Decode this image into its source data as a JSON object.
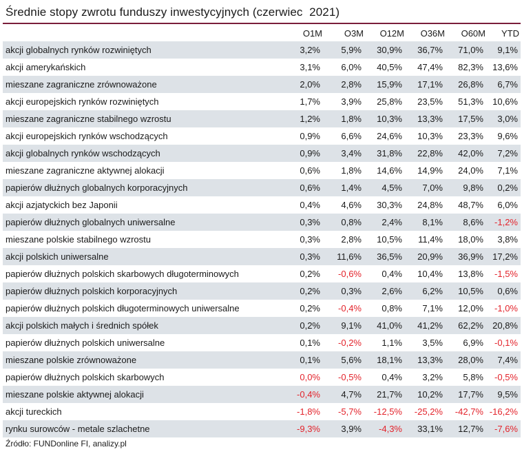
{
  "title": "Średnie stopy zwrotu funduszy inwestycyjnych (czerwiec  2021)",
  "colors": {
    "accent_rule": "#7a1e3a",
    "row_shade": "#dde2e7",
    "negative": "#e3232b"
  },
  "columns": [
    "O1M",
    "O3M",
    "O12M",
    "O36M",
    "O60M",
    "YTD"
  ],
  "rows": [
    {
      "name": "akcji globalnych rynków rozwiniętych",
      "values": [
        "3,2%",
        "5,9%",
        "30,9%",
        "36,7%",
        "71,0%",
        "9,1%"
      ]
    },
    {
      "name": "akcji amerykańskich",
      "values": [
        "3,1%",
        "6,0%",
        "40,5%",
        "47,4%",
        "82,3%",
        "13,6%"
      ]
    },
    {
      "name": "mieszane zagraniczne zrównoważone",
      "values": [
        "2,0%",
        "2,8%",
        "15,9%",
        "17,1%",
        "26,8%",
        "6,7%"
      ]
    },
    {
      "name": "akcji europejskich rynków rozwiniętych",
      "values": [
        "1,7%",
        "3,9%",
        "25,8%",
        "23,5%",
        "51,3%",
        "10,6%"
      ]
    },
    {
      "name": "mieszane zagraniczne stabilnego wzrostu",
      "values": [
        "1,2%",
        "1,8%",
        "10,3%",
        "13,3%",
        "17,5%",
        "3,0%"
      ]
    },
    {
      "name": "akcji europejskich rynków wschodzących",
      "values": [
        "0,9%",
        "6,6%",
        "24,6%",
        "10,3%",
        "23,3%",
        "9,6%"
      ]
    },
    {
      "name": "akcji globalnych rynków wschodzących",
      "values": [
        "0,9%",
        "3,4%",
        "31,8%",
        "22,8%",
        "42,0%",
        "7,2%"
      ]
    },
    {
      "name": "mieszane zagraniczne aktywnej alokacji",
      "values": [
        "0,6%",
        "1,8%",
        "14,6%",
        "14,9%",
        "24,0%",
        "7,1%"
      ]
    },
    {
      "name": "papierów dłużnych globalnych korporacyjnych",
      "values": [
        "0,6%",
        "1,4%",
        "4,5%",
        "7,0%",
        "9,8%",
        "0,2%"
      ]
    },
    {
      "name": "akcji azjatyckich bez Japonii",
      "values": [
        "0,4%",
        "4,6%",
        "30,3%",
        "24,8%",
        "48,7%",
        "6,0%"
      ]
    },
    {
      "name": "papierów dłużnych globalnych uniwersalne",
      "values": [
        "0,3%",
        "0,8%",
        "2,4%",
        "8,1%",
        "8,6%",
        "-1,2%"
      ]
    },
    {
      "name": "mieszane polskie stabilnego wzrostu",
      "values": [
        "0,3%",
        "2,8%",
        "10,5%",
        "11,4%",
        "18,0%",
        "3,8%"
      ]
    },
    {
      "name": "akcji polskich uniwersalne",
      "values": [
        "0,3%",
        "11,6%",
        "36,5%",
        "20,9%",
        "36,9%",
        "17,2%"
      ]
    },
    {
      "name": "papierów dłużnych polskich skarbowych długoterminowych",
      "values": [
        "0,2%",
        "-0,6%",
        "0,4%",
        "10,4%",
        "13,8%",
        "-1,5%"
      ]
    },
    {
      "name": "papierów dłużnych polskich korporacyjnych",
      "values": [
        "0,2%",
        "0,3%",
        "2,6%",
        "6,2%",
        "10,5%",
        "0,6%"
      ]
    },
    {
      "name": "papierów dłużnych polskich długoterminowych uniwersalne",
      "values": [
        "0,2%",
        "-0,4%",
        "0,8%",
        "7,1%",
        "12,0%",
        "-1,0%"
      ]
    },
    {
      "name": "akcji polskich małych i średnich spółek",
      "values": [
        "0,2%",
        "9,1%",
        "41,0%",
        "41,2%",
        "62,2%",
        "20,8%"
      ]
    },
    {
      "name": "papierów dłużnych polskich uniwersalne",
      "values": [
        "0,1%",
        "-0,2%",
        "1,1%",
        "3,5%",
        "6,9%",
        "-0,1%"
      ]
    },
    {
      "name": "mieszane polskie zrównoważone",
      "values": [
        "0,1%",
        "5,6%",
        "18,1%",
        "13,3%",
        "28,0%",
        "7,4%"
      ]
    },
    {
      "name": "papierów dłużnych polskich skarbowych",
      "values": [
        "0,0%",
        "-0,5%",
        "0,4%",
        "3,2%",
        "5,8%",
        "-0,5%"
      ]
    },
    {
      "name": "mieszane polskie aktywnej alokacji",
      "values": [
        "-0,4%",
        "4,7%",
        "21,7%",
        "10,2%",
        "17,7%",
        "9,5%"
      ]
    },
    {
      "name": "akcji tureckich",
      "values": [
        "-1,8%",
        "-5,7%",
        "-12,5%",
        "-25,2%",
        "-42,7%",
        "-16,2%"
      ]
    },
    {
      "name": "rynku surowców - metale szlachetne",
      "values": [
        "-9,3%",
        "3,9%",
        "-4,3%",
        "33,1%",
        "12,7%",
        "-7,6%"
      ]
    }
  ],
  "negative_flags": [
    [
      false,
      false,
      false,
      false,
      false,
      false
    ],
    [
      false,
      false,
      false,
      false,
      false,
      false
    ],
    [
      false,
      false,
      false,
      false,
      false,
      false
    ],
    [
      false,
      false,
      false,
      false,
      false,
      false
    ],
    [
      false,
      false,
      false,
      false,
      false,
      false
    ],
    [
      false,
      false,
      false,
      false,
      false,
      false
    ],
    [
      false,
      false,
      false,
      false,
      false,
      false
    ],
    [
      false,
      false,
      false,
      false,
      false,
      false
    ],
    [
      false,
      false,
      false,
      false,
      false,
      false
    ],
    [
      false,
      false,
      false,
      false,
      false,
      false
    ],
    [
      false,
      false,
      false,
      false,
      false,
      true
    ],
    [
      false,
      false,
      false,
      false,
      false,
      false
    ],
    [
      false,
      false,
      false,
      false,
      false,
      false
    ],
    [
      false,
      true,
      false,
      false,
      false,
      true
    ],
    [
      false,
      false,
      false,
      false,
      false,
      false
    ],
    [
      false,
      true,
      false,
      false,
      false,
      true
    ],
    [
      false,
      false,
      false,
      false,
      false,
      false
    ],
    [
      false,
      true,
      false,
      false,
      false,
      true
    ],
    [
      false,
      false,
      false,
      false,
      false,
      false
    ],
    [
      true,
      true,
      false,
      false,
      false,
      true
    ],
    [
      true,
      false,
      false,
      false,
      false,
      false
    ],
    [
      true,
      true,
      true,
      true,
      true,
      true
    ],
    [
      true,
      false,
      true,
      false,
      false,
      true
    ]
  ],
  "source": "Źródło: FUNDonline FI, analizy.pl"
}
